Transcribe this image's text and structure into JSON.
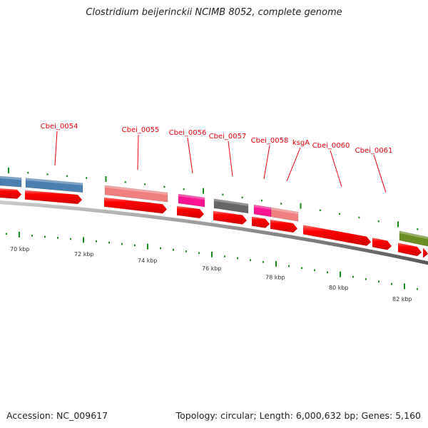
{
  "title": "Clostridium beijerinckii NCIMB 8052, complete genome",
  "footer": {
    "accession": "Accession: NC_009617",
    "summary": "Topology: circular; Length: 6,000,632 bp; Genes: 5,160"
  },
  "colors": {
    "cds": "#ff0000",
    "label": "#e8000b",
    "tick": "#1a8a1a",
    "backbone": "#888888",
    "blue": "#4a7fb0",
    "salmon": "#f08080",
    "magenta": "#ff1493",
    "gray": "#666666",
    "olive": "#6b8e23"
  },
  "scale": {
    "unit": "kbp",
    "major_labels": [
      "70 kbp",
      "72 kbp",
      "74 kbp",
      "76 kbp",
      "78 kbp",
      "80 kbp",
      "82 kbp"
    ]
  },
  "gene_labels": [
    {
      "name": "Cbei_0054"
    },
    {
      "name": "Cbei_0055"
    },
    {
      "name": "Cbei_0056"
    },
    {
      "name": "Cbei_0057"
    },
    {
      "name": "Cbei_0058"
    },
    {
      "name": "ksgA"
    },
    {
      "name": "Cbei_0060"
    },
    {
      "name": "Cbei_0061"
    }
  ],
  "feature_tracks": {
    "cog_track": [
      {
        "color": "blue"
      },
      {
        "color": "blue"
      },
      {
        "color": "salmon"
      },
      {
        "color": "magenta"
      },
      {
        "color": "gray"
      },
      {
        "color": "magenta"
      },
      {
        "color": "salmon"
      },
      {
        "color": "olive"
      }
    ],
    "cds_track_count": 12
  }
}
